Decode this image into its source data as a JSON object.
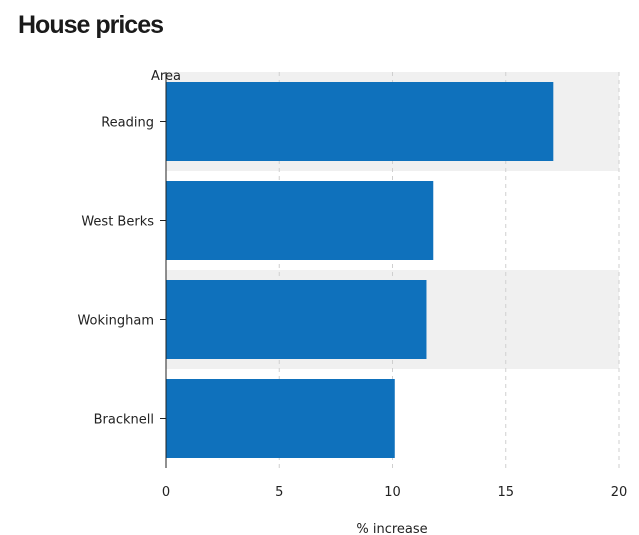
{
  "chart_data": {
    "type": "bar",
    "orientation": "horizontal",
    "title": "House prices",
    "categories_label": "Area",
    "categories": [
      "Reading",
      "West Berks",
      "Wokingham",
      "Bracknell"
    ],
    "values": [
      17.1,
      11.8,
      11.5,
      10.1
    ],
    "xlabel": "% increase",
    "xlim": [
      0,
      20
    ],
    "xticks": [
      "0",
      "5",
      "10",
      "15",
      "20"
    ],
    "grid": "vertical dashed",
    "bar_color": "#0f71bc",
    "band_color": "#f0f0f0"
  }
}
